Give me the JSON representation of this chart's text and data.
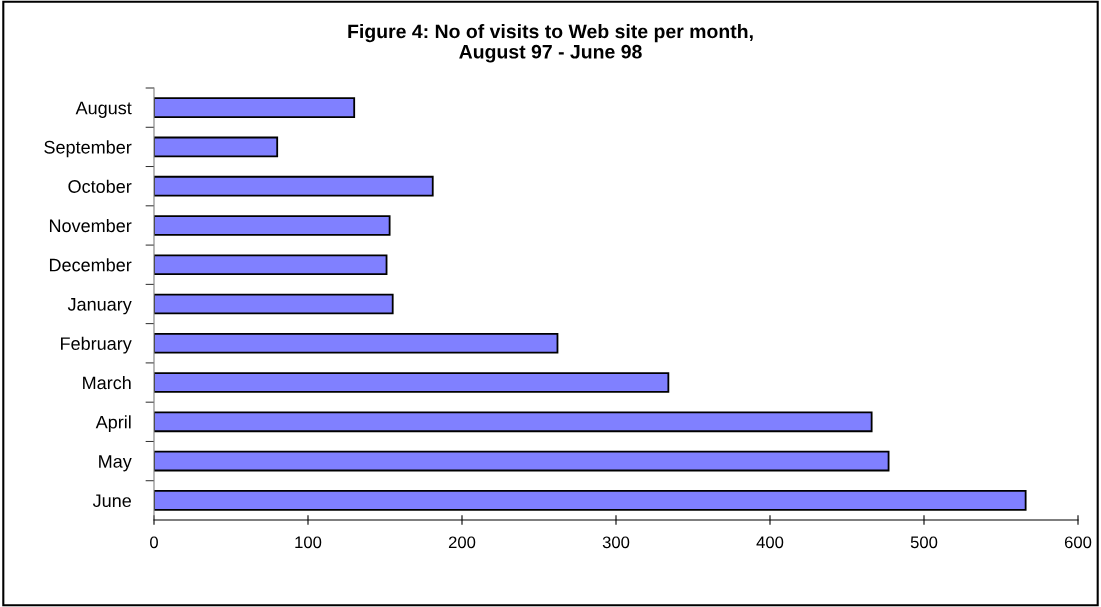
{
  "chart_data": {
    "type": "bar",
    "orientation": "horizontal",
    "title": "Figure 4: No of visits to Web site per month,\nAugust 97 - June 98",
    "categories": [
      "August",
      "September",
      "October",
      "November",
      "December",
      "January",
      "February",
      "March",
      "April",
      "May",
      "June"
    ],
    "values": [
      130,
      80,
      181,
      153,
      151,
      155,
      262,
      334,
      466,
      477,
      566
    ],
    "color": "#8080ff",
    "xlim": [
      0,
      600
    ],
    "xticks": [
      0,
      100,
      200,
      300,
      400,
      500,
      600
    ],
    "grid": false,
    "legend": false
  }
}
